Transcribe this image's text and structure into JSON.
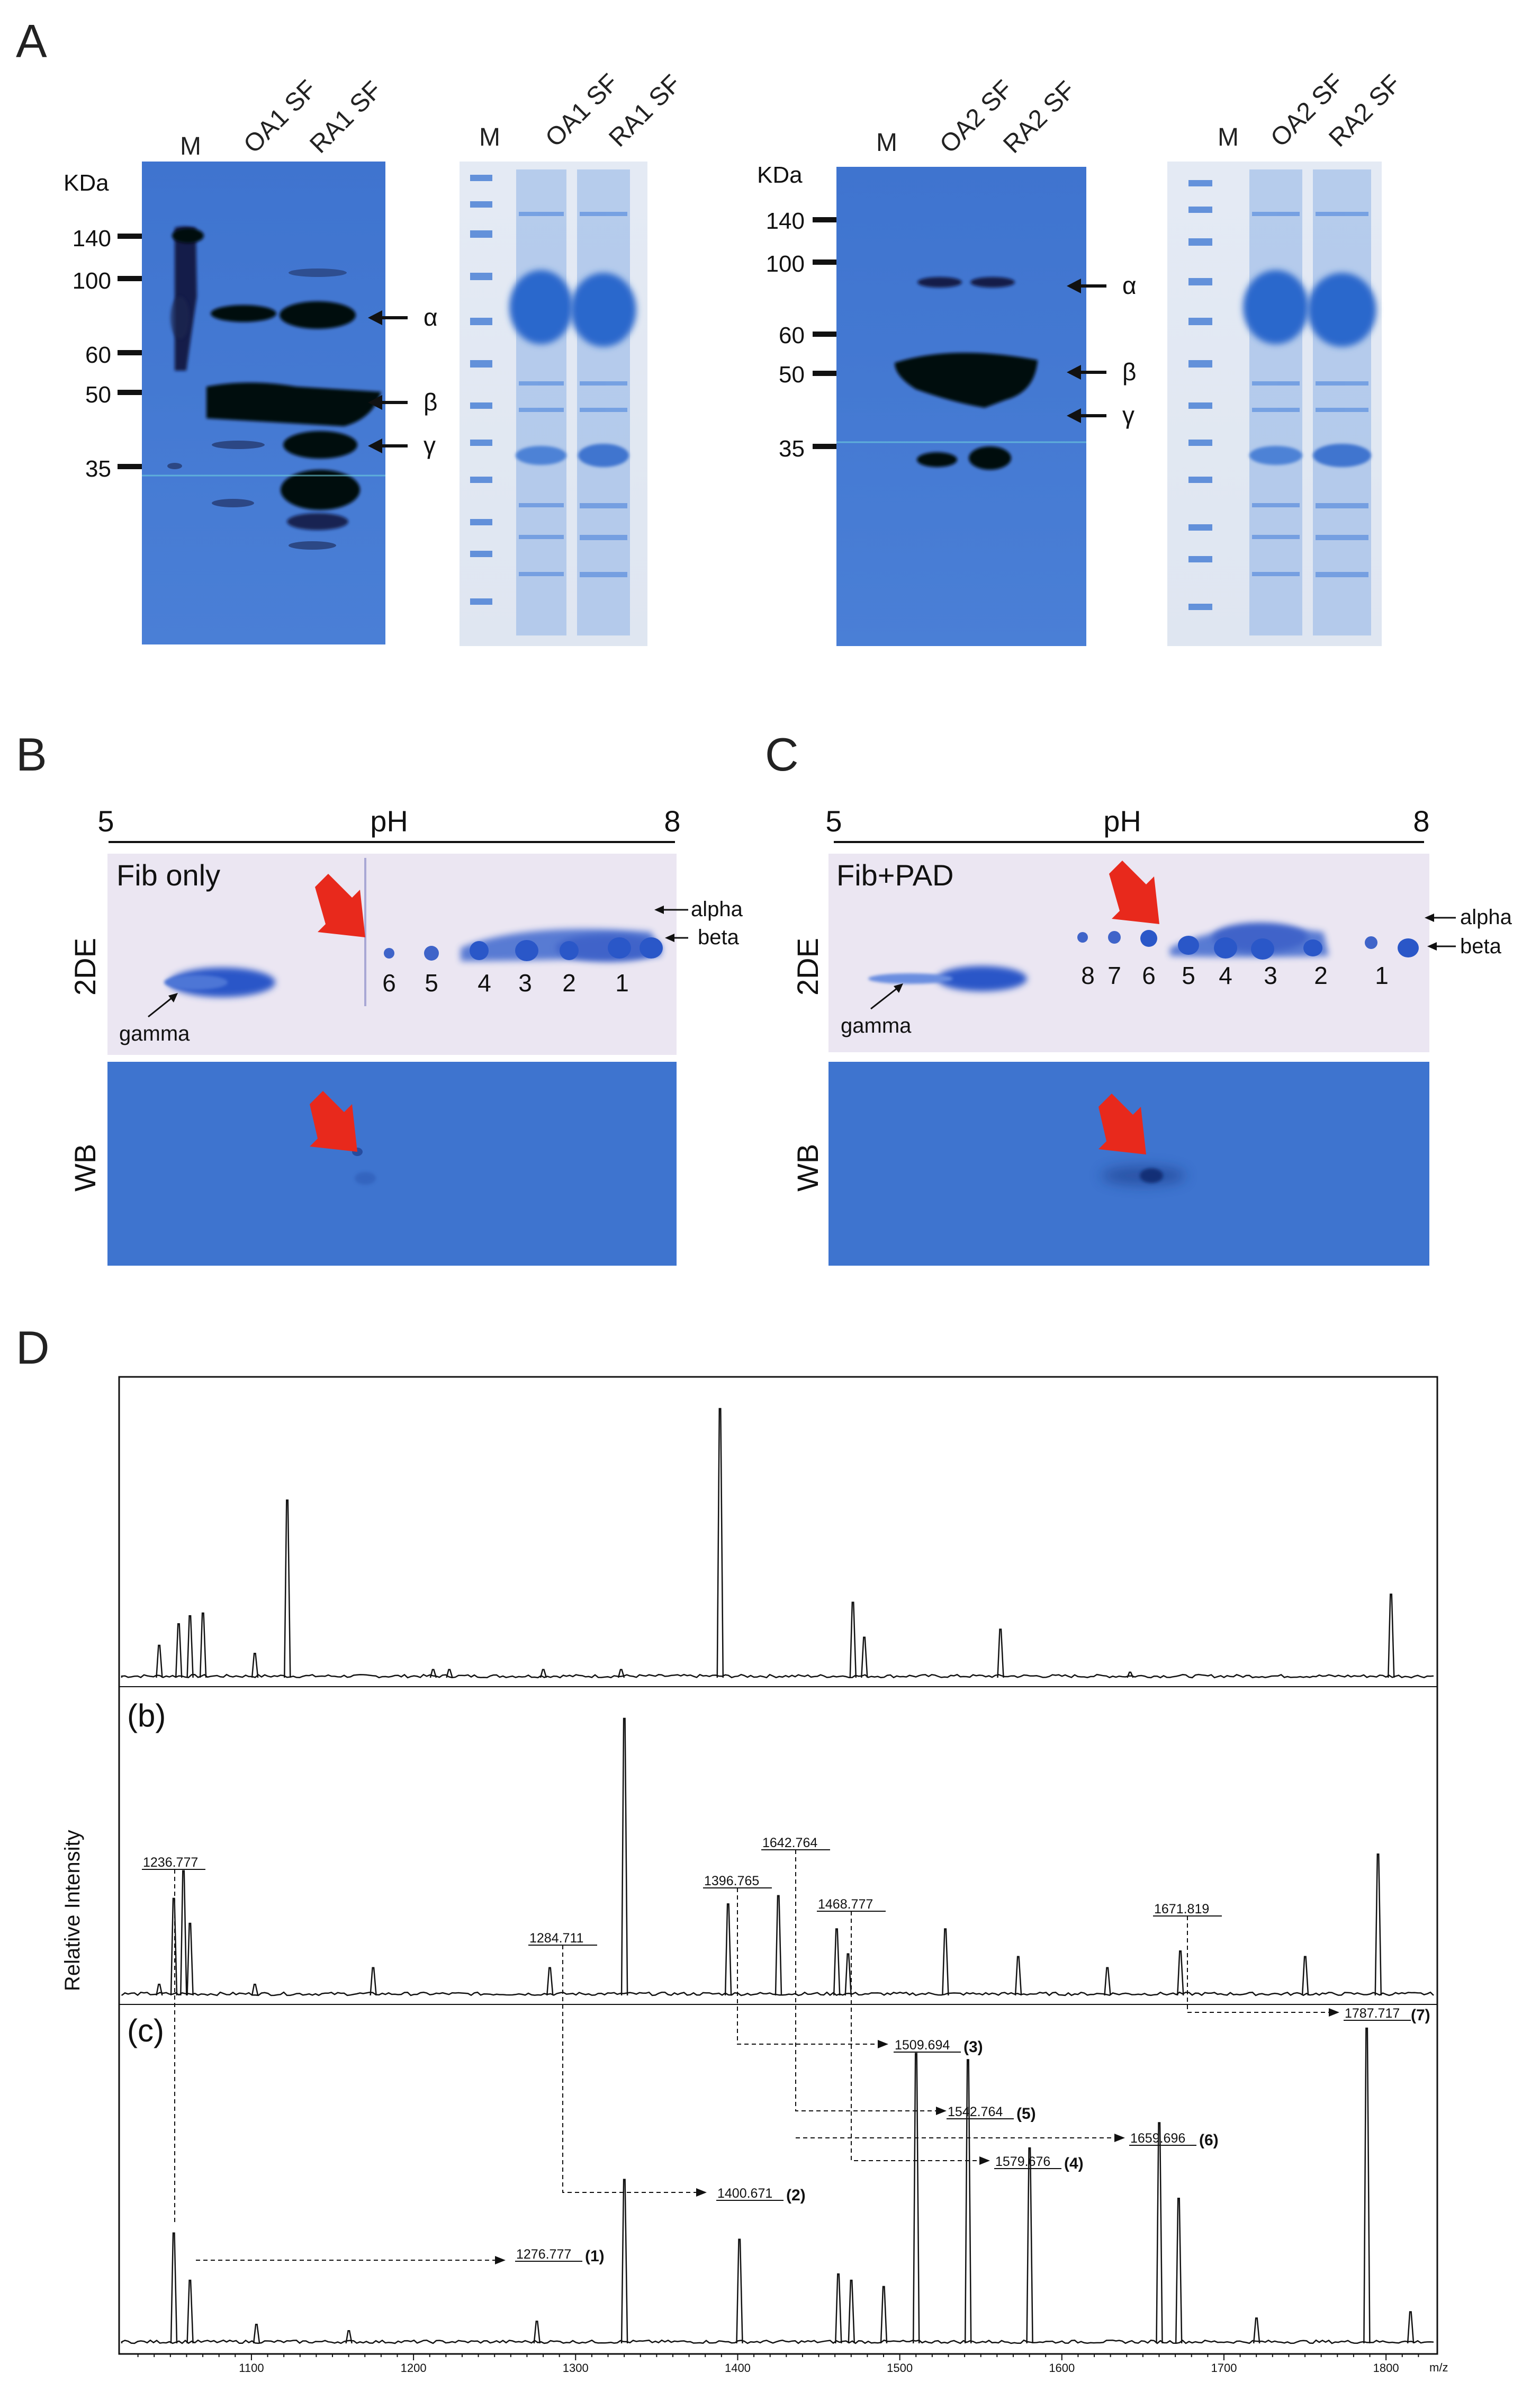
{
  "panels": {
    "A": {
      "letter": "A",
      "blots": [
        {
          "kda_title": "KDa",
          "markers": [
            "140",
            "100",
            "60",
            "50",
            "35"
          ],
          "lanes": [
            "M",
            "OA1 SF",
            "RA1 SF"
          ],
          "chains": [
            "α",
            "β",
            "γ"
          ]
        },
        {
          "lanes": [
            "M",
            "OA1 SF",
            "RA1 SF"
          ]
        },
        {
          "kda_title": "KDa",
          "markers": [
            "140",
            "100",
            "60",
            "50",
            "35"
          ],
          "lanes": [
            "M",
            "OA2 SF",
            "RA2 SF"
          ],
          "chains": [
            "α",
            "β",
            "γ"
          ]
        },
        {
          "lanes": [
            "M",
            "OA2 SF",
            "RA2 SF"
          ]
        }
      ]
    },
    "B": {
      "letter": "B",
      "ph_title": "pH",
      "ph_low": "5",
      "ph_high": "8",
      "condition": "Fib only",
      "row_2de": "2DE",
      "row_wb": "WB",
      "alpha": "alpha",
      "beta": "beta",
      "gamma": "gamma",
      "spots": [
        "6",
        "5",
        "4",
        "3",
        "2",
        "1"
      ]
    },
    "C": {
      "letter": "C",
      "ph_title": "pH",
      "ph_low": "5",
      "ph_high": "8",
      "condition": "Fib+PAD",
      "row_2de": "2DE",
      "row_wb": "WB",
      "alpha": "alpha",
      "beta": "beta",
      "gamma": "gamma",
      "spots": [
        "8",
        "7",
        "6",
        "5",
        "4",
        "3",
        "2",
        "1"
      ]
    },
    "D": {
      "letter": "D",
      "ylabel": "Relative Intensity",
      "xunit": "m/z",
      "subpanel_b": "(b)",
      "subpanel_c": "(c)",
      "x_ticks": [
        "1100",
        "1200",
        "1300",
        "1400",
        "1500",
        "1600",
        "1700",
        "1800"
      ],
      "b_peak_labels": [
        "1236.777",
        "1284.711",
        "1396.765",
        "1642.764",
        "1468.777",
        "1671.819"
      ],
      "c_peak_labels": [
        "1276.777",
        "1400.671",
        "1509.694",
        "1542.764",
        "1579.676",
        "1659.696",
        "1787.717"
      ],
      "c_numbers": [
        "(1)",
        "(2)",
        "(3)",
        "(5)",
        "(4)",
        "(6)",
        "(7)"
      ]
    }
  },
  "chart_data": {
    "type": "line",
    "xlabel": "m/z",
    "ylabel": "Relative Intensity",
    "xlim": [
      1020,
      1830
    ],
    "series": [
      {
        "name": "",
        "peaks": [
          [
            1043,
            0.12
          ],
          [
            1055,
            0.2
          ],
          [
            1062,
            0.23
          ],
          [
            1070,
            0.24
          ],
          [
            1102,
            0.09
          ],
          [
            1122,
            0.66
          ],
          [
            1212,
            0.03
          ],
          [
            1222,
            0.03
          ],
          [
            1280,
            0.03
          ],
          [
            1328,
            0.03
          ],
          [
            1389,
            1.0
          ],
          [
            1471,
            0.28
          ],
          [
            1478,
            0.15
          ],
          [
            1562,
            0.18
          ],
          [
            1642,
            0.02
          ],
          [
            1803,
            0.31
          ]
        ]
      },
      {
        "name": "(b)",
        "peaks": [
          [
            1043,
            0.04
          ],
          [
            1052,
            0.35
          ],
          [
            1058,
            0.45
          ],
          [
            1062,
            0.26
          ],
          [
            1102,
            0.04
          ],
          [
            1175,
            0.1
          ],
          [
            1284,
            0.1
          ],
          [
            1330,
            1.0
          ],
          [
            1394,
            0.33
          ],
          [
            1425,
            0.36
          ],
          [
            1461,
            0.24
          ],
          [
            1468,
            0.15
          ],
          [
            1528,
            0.24
          ],
          [
            1573,
            0.14
          ],
          [
            1628,
            0.1
          ],
          [
            1673,
            0.16
          ],
          [
            1750,
            0.14
          ],
          [
            1795,
            0.51
          ]
        ]
      },
      {
        "name": "(c)",
        "peaks": [
          [
            1052,
            0.35
          ],
          [
            1062,
            0.2
          ],
          [
            1103,
            0.06
          ],
          [
            1160,
            0.04
          ],
          [
            1276,
            0.07
          ],
          [
            1330,
            0.52
          ],
          [
            1401,
            0.33
          ],
          [
            1462,
            0.22
          ],
          [
            1470,
            0.2
          ],
          [
            1490,
            0.18
          ],
          [
            1510,
            0.92
          ],
          [
            1542,
            0.9
          ],
          [
            1580,
            0.62
          ],
          [
            1660,
            0.7
          ],
          [
            1672,
            0.46
          ],
          [
            1720,
            0.08
          ],
          [
            1788,
            1.0
          ],
          [
            1815,
            0.1
          ]
        ]
      }
    ]
  }
}
